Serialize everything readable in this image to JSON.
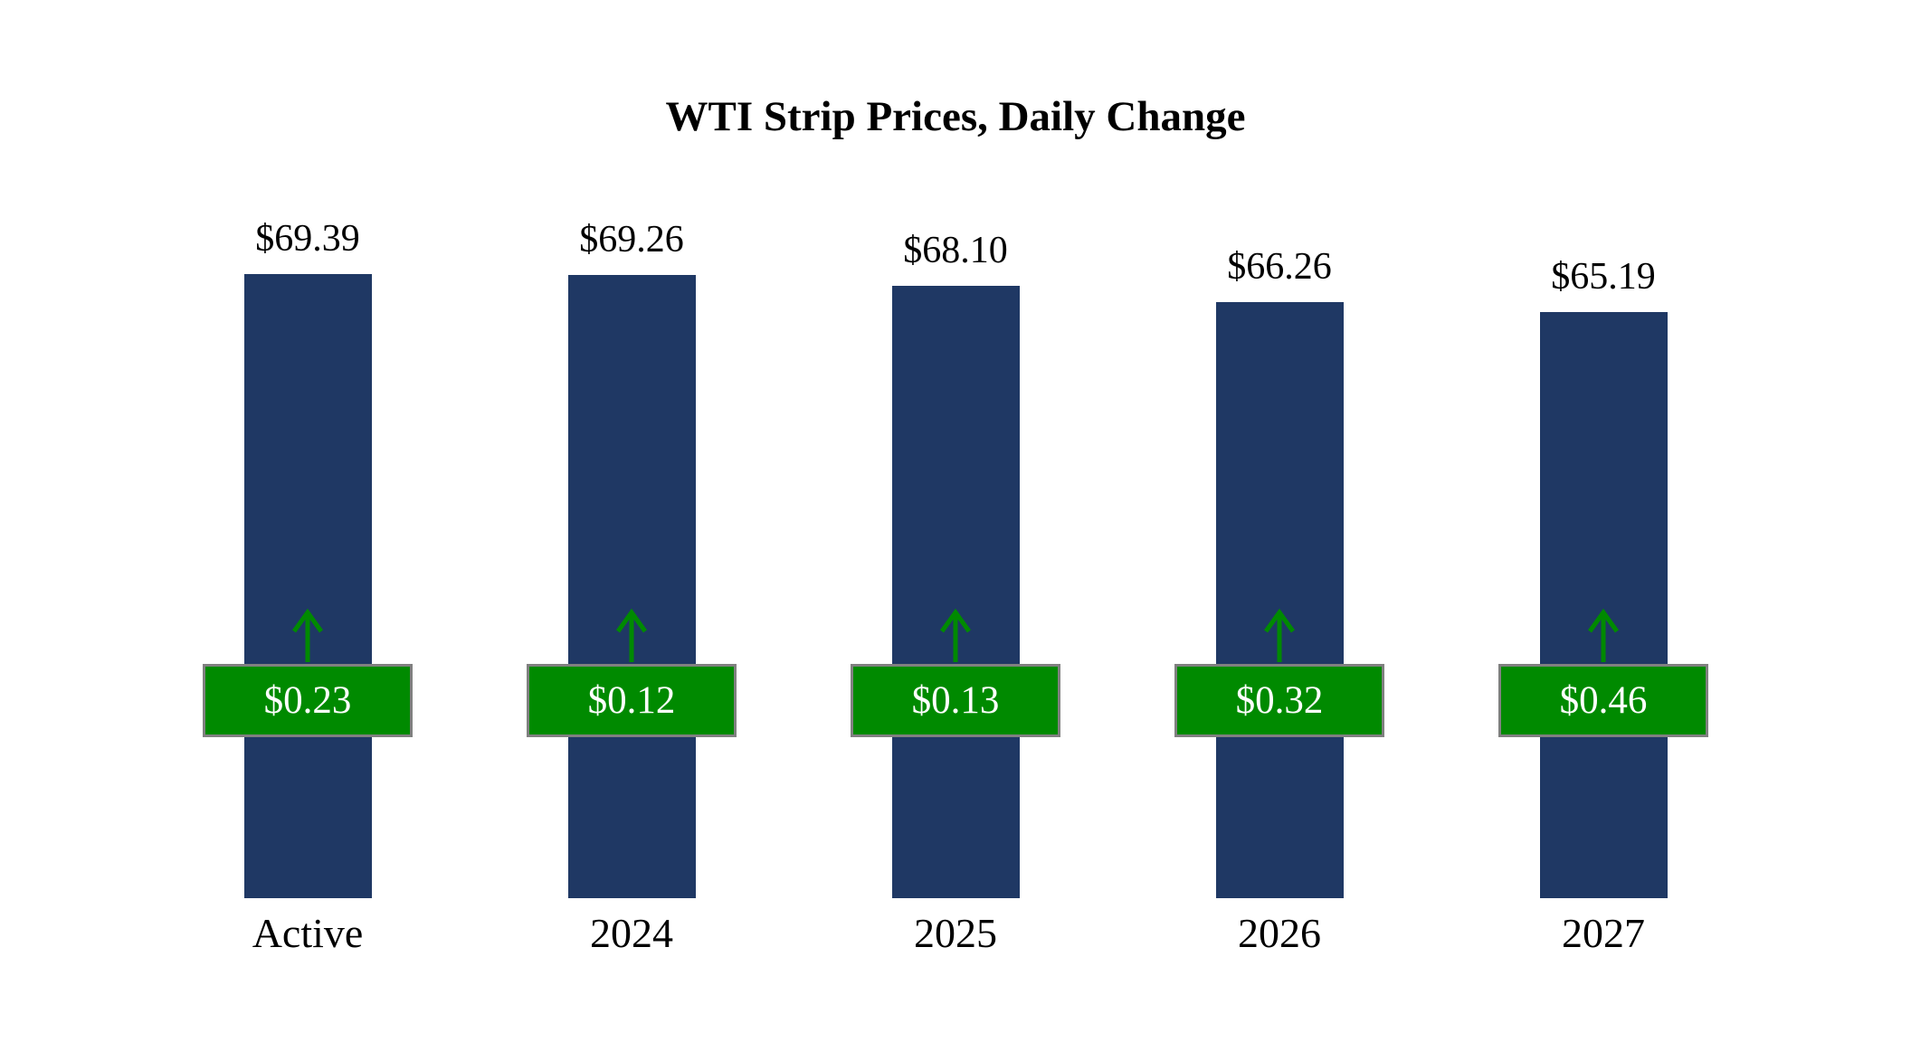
{
  "title": "WTI Strip Prices, Daily Change",
  "chart_data": {
    "type": "bar",
    "title": "WTI Strip Prices, Daily Change",
    "categories": [
      "Active",
      "2024",
      "2025",
      "2026",
      "2027"
    ],
    "series": [
      {
        "name": "Strip Price",
        "values": [
          69.39,
          69.26,
          68.1,
          66.26,
          65.19
        ],
        "labels": [
          "$69.39",
          "$69.26",
          "$68.10",
          "$66.26",
          "$65.19"
        ]
      },
      {
        "name": "Daily Change",
        "values": [
          0.23,
          0.12,
          0.13,
          0.32,
          0.46
        ],
        "labels": [
          "$0.23",
          "$0.12",
          "$0.13",
          "$0.32",
          "$0.46"
        ],
        "direction": "up"
      }
    ],
    "ylim": [
      0,
      69.39
    ],
    "xlabel": "",
    "ylabel": "",
    "grid": false,
    "legend": "none",
    "colors": {
      "bar": "#1F3864",
      "change_badge": "#008A00",
      "badge_border": "#808080",
      "badge_text": "#FFFFFF",
      "arrow": "#008A00",
      "text": "#000000",
      "background": "#FFFFFF"
    }
  }
}
